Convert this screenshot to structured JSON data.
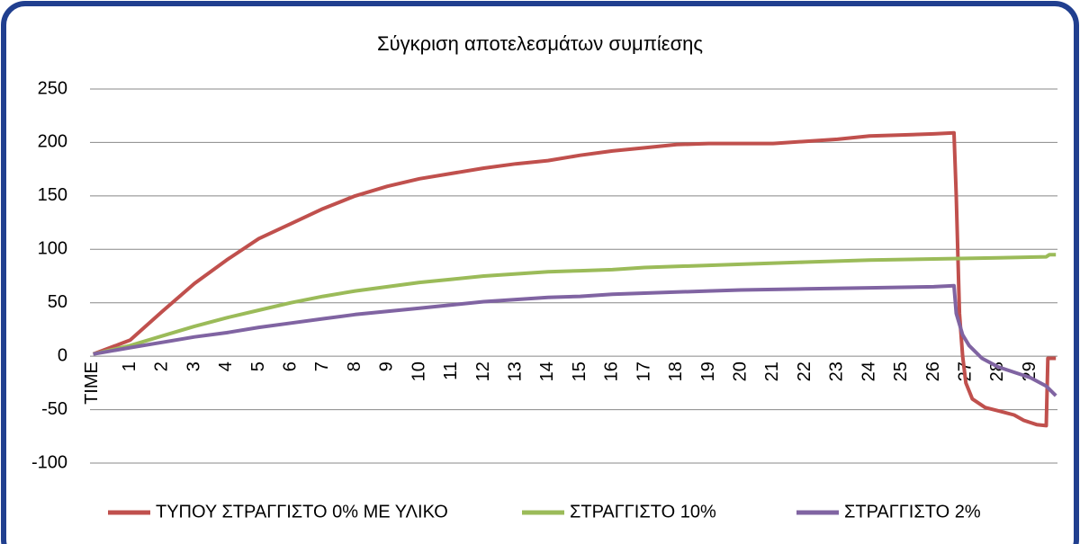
{
  "chart_data": {
    "type": "line",
    "title": "Σύγκριση αποτελεσμάτων συμπίεσης",
    "xlim": [
      -0.25,
      29.85
    ],
    "xticks": [
      {
        "value": 0,
        "label": "TIME"
      },
      1,
      2,
      3,
      4,
      5,
      6,
      7,
      8,
      9,
      10,
      11,
      12,
      13,
      14,
      15,
      16,
      17,
      18,
      19,
      20,
      21,
      22,
      23,
      24,
      25,
      26,
      27,
      28,
      29
    ],
    "ylim": [
      -100,
      250
    ],
    "yticks": [
      -100,
      -50,
      0,
      50,
      100,
      150,
      200,
      250
    ],
    "grid": true,
    "legend": "bottom",
    "series": [
      {
        "name": "ΤΥΠΟΥ ΣΤΡΑΓΓΙΣΤΟ 0% ΜΕ ΥΛΙΚΟ",
        "color": "#c0504d",
        "x": [
          -0.15,
          1,
          2,
          3,
          4,
          5,
          6,
          7,
          8,
          9,
          10,
          11,
          12,
          13,
          14,
          15,
          16,
          17,
          18,
          19,
          20,
          21,
          22,
          23,
          24,
          25,
          26,
          26.63,
          26.7,
          26.8,
          26.9,
          27.0,
          27.2,
          27.6,
          28.0,
          28.5,
          28.8,
          29.2,
          29.5,
          29.55,
          29.8
        ],
        "y": [
          2,
          15,
          42,
          68,
          90,
          110,
          124,
          138,
          150,
          159,
          166,
          171,
          176,
          180,
          183,
          188,
          192,
          195,
          198,
          199,
          199,
          199,
          201,
          203,
          206,
          207,
          208,
          209,
          150,
          40,
          0,
          -25,
          -40,
          -48,
          -51,
          -55,
          -60,
          -64,
          -65,
          -2,
          -2
        ]
      },
      {
        "name": "ΣΤΡΑΓΓΙΣΤΟ 10%",
        "color": "#9bbb59",
        "x": [
          -0.15,
          1,
          2,
          3,
          4,
          5,
          6,
          7,
          8,
          9,
          10,
          11,
          12,
          13,
          14,
          15,
          16,
          17,
          18,
          19,
          20,
          22,
          24,
          26,
          28,
          29.5,
          29.6,
          29.8
        ],
        "y": [
          2,
          10,
          19,
          28,
          36,
          43,
          50,
          56,
          61,
          65,
          69,
          72,
          75,
          77,
          79,
          80,
          81,
          83,
          84,
          85,
          86,
          88,
          90,
          91,
          92,
          93,
          95,
          95
        ]
      },
      {
        "name": "ΣΤΡΑΓΓΙΣΤΟ 2%",
        "color": "#8064a2",
        "x": [
          -0.15,
          1,
          2,
          3,
          4,
          5,
          6,
          7,
          8,
          9,
          10,
          11,
          12,
          13,
          14,
          15,
          16,
          17,
          18,
          19,
          20,
          22,
          24,
          26,
          26.63,
          26.7,
          26.9,
          27.1,
          27.5,
          28,
          28.5,
          29,
          29.5,
          29.8
        ],
        "y": [
          2,
          8,
          13,
          18,
          22,
          27,
          31,
          35,
          39,
          42,
          45,
          48,
          51,
          53,
          55,
          56,
          58,
          59,
          60,
          61,
          62,
          63,
          64,
          65,
          66,
          40,
          20,
          10,
          -2,
          -10,
          -15,
          -20,
          -28,
          -37
        ]
      }
    ]
  }
}
